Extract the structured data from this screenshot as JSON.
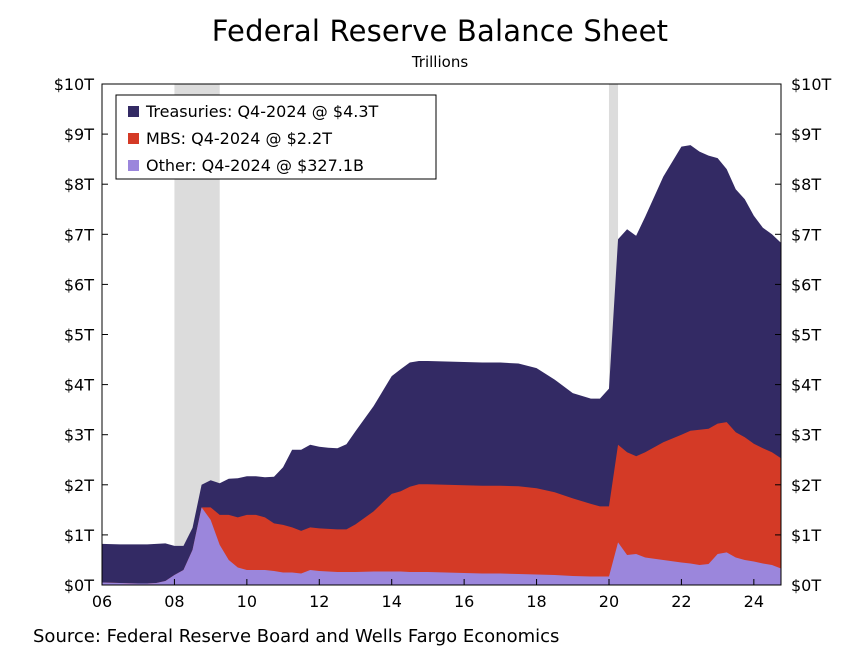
{
  "chart_data": {
    "type": "area",
    "stacked": true,
    "title": "Federal Reserve Balance Sheet",
    "subtitle": "Trillions",
    "source": "Source: Federal Reserve Board and Wells Fargo Economics",
    "x_ticks": [
      "06",
      "08",
      "10",
      "12",
      "14",
      "16",
      "18",
      "20",
      "22",
      "24"
    ],
    "x_tick_values": [
      2006,
      2008,
      2010,
      2012,
      2014,
      2016,
      2018,
      2020,
      2022,
      2024
    ],
    "xlim": [
      2006,
      2024.75
    ],
    "y_ticks": [
      "$0T",
      "$1T",
      "$2T",
      "$3T",
      "$4T",
      "$5T",
      "$6T",
      "$7T",
      "$8T",
      "$9T",
      "$10T"
    ],
    "ylim": [
      0,
      10
    ],
    "y_axis_sides": "both",
    "grid": false,
    "legend_position": "top-left",
    "recession_shading": [
      [
        2008.0,
        2009.25
      ],
      [
        2020.0,
        2020.25
      ]
    ],
    "recession_color": "#dcdcdc",
    "x": [
      2006.0,
      2006.5,
      2007.0,
      2007.25,
      2007.5,
      2007.75,
      2008.0,
      2008.25,
      2008.5,
      2008.75,
      2009.0,
      2009.25,
      2009.5,
      2009.75,
      2010.0,
      2010.25,
      2010.5,
      2010.75,
      2011.0,
      2011.25,
      2011.5,
      2011.75,
      2012.0,
      2012.25,
      2012.5,
      2012.75,
      2013.0,
      2013.5,
      2014.0,
      2014.25,
      2014.5,
      2014.75,
      2015.0,
      2015.5,
      2016.0,
      2016.5,
      2017.0,
      2017.5,
      2018.0,
      2018.5,
      2019.0,
      2019.5,
      2019.75,
      2020.0,
      2020.25,
      2020.5,
      2020.75,
      2021.0,
      2021.5,
      2022.0,
      2022.25,
      2022.5,
      2022.75,
      2023.0,
      2023.25,
      2023.5,
      2023.75,
      2024.0,
      2024.25,
      2024.5,
      2024.75
    ],
    "series": [
      {
        "name": "Treasuries: Q4-2024 @ $4.3T",
        "color": "#332a64",
        "values": [
          0.77,
          0.77,
          0.78,
          0.78,
          0.78,
          0.75,
          0.58,
          0.48,
          0.44,
          0.45,
          0.54,
          0.63,
          0.72,
          0.78,
          0.77,
          0.77,
          0.8,
          0.93,
          1.15,
          1.55,
          1.62,
          1.65,
          1.63,
          1.62,
          1.62,
          1.7,
          1.86,
          2.1,
          2.35,
          2.44,
          2.48,
          2.46,
          2.46,
          2.46,
          2.46,
          2.46,
          2.46,
          2.45,
          2.4,
          2.25,
          2.1,
          2.1,
          2.15,
          2.35,
          4.1,
          4.45,
          4.4,
          4.7,
          5.3,
          5.75,
          5.7,
          5.55,
          5.45,
          5.3,
          5.05,
          4.85,
          4.75,
          4.55,
          4.4,
          4.35,
          4.3
        ]
      },
      {
        "name": "MBS: Q4-2024 @ $2.2T",
        "color": "#d43a26",
        "values": [
          0.0,
          0.0,
          0.0,
          0.0,
          0.0,
          0.0,
          0.0,
          0.0,
          0.0,
          0.0,
          0.25,
          0.6,
          0.9,
          1.0,
          1.1,
          1.1,
          1.05,
          0.95,
          0.95,
          0.9,
          0.85,
          0.85,
          0.85,
          0.85,
          0.85,
          0.85,
          0.95,
          1.2,
          1.55,
          1.6,
          1.7,
          1.75,
          1.75,
          1.75,
          1.75,
          1.75,
          1.75,
          1.75,
          1.72,
          1.65,
          1.55,
          1.45,
          1.4,
          1.4,
          1.95,
          2.05,
          1.95,
          2.1,
          2.35,
          2.55,
          2.65,
          2.7,
          2.7,
          2.6,
          2.6,
          2.5,
          2.45,
          2.35,
          2.3,
          2.25,
          2.2
        ]
      },
      {
        "name": "Other: Q4-2024 @ $327.1B",
        "color": "#9b86dc",
        "values": [
          0.05,
          0.04,
          0.03,
          0.03,
          0.04,
          0.08,
          0.2,
          0.3,
          0.7,
          1.55,
          1.3,
          0.8,
          0.5,
          0.35,
          0.3,
          0.3,
          0.3,
          0.28,
          0.25,
          0.25,
          0.23,
          0.3,
          0.28,
          0.27,
          0.26,
          0.26,
          0.26,
          0.27,
          0.27,
          0.27,
          0.26,
          0.26,
          0.26,
          0.25,
          0.24,
          0.23,
          0.23,
          0.22,
          0.21,
          0.2,
          0.18,
          0.17,
          0.17,
          0.17,
          0.85,
          0.6,
          0.62,
          0.55,
          0.5,
          0.45,
          0.43,
          0.4,
          0.42,
          0.62,
          0.65,
          0.55,
          0.5,
          0.47,
          0.43,
          0.4,
          0.33
        ]
      }
    ]
  }
}
